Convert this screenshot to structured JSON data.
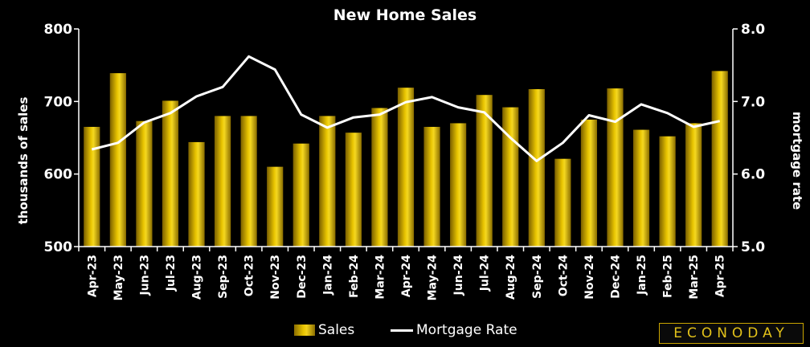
{
  "chart_data": {
    "type": "bar",
    "title": "New Home Sales",
    "categories": [
      "Apr-23",
      "May-23",
      "Jun-23",
      "Jul-23",
      "Aug-23",
      "Sep-23",
      "Oct-23",
      "Nov-23",
      "Dec-23",
      "Jan-24",
      "Feb-24",
      "Mar-24",
      "Apr-24",
      "May-24",
      "Jun-24",
      "Jul-24",
      "Aug-24",
      "Sep-24",
      "Oct-24",
      "Nov-24",
      "Dec-24",
      "Jan-25",
      "Feb-25",
      "Mar-25",
      "Apr-25"
    ],
    "series": [
      {
        "name": "Sales",
        "type": "bar",
        "axis": "left",
        "color": "#e3c21a",
        "values": [
          665,
          739,
          673,
          701,
          644,
          680,
          680,
          610,
          642,
          680,
          657,
          691,
          719,
          665,
          670,
          709,
          692,
          717,
          621,
          675,
          718,
          661,
          652,
          670,
          742
        ]
      },
      {
        "name": "Mortgage Rate",
        "type": "line",
        "axis": "right",
        "color": "#ffffff",
        "values": [
          6.34,
          6.43,
          6.71,
          6.84,
          7.07,
          7.2,
          7.62,
          7.44,
          6.82,
          6.64,
          6.78,
          6.82,
          6.99,
          7.06,
          6.92,
          6.85,
          6.5,
          6.18,
          6.43,
          6.81,
          6.72,
          6.96,
          6.84,
          6.65,
          6.73
        ]
      }
    ],
    "ylabel": "thousands of sales",
    "y2label": "mortgage rate",
    "ylim": [
      500,
      800
    ],
    "y2lim": [
      5.0,
      8.0
    ],
    "yticks": [
      "500",
      "600",
      "700",
      "800"
    ],
    "y2ticks": [
      "5.0",
      "6.0",
      "7.0",
      "8.0"
    ],
    "grid": false,
    "legend_position": "bottom"
  },
  "brand": "ECONODAY",
  "colors": {
    "background": "#000000",
    "bar": "#e3c21a",
    "line": "#ffffff",
    "axis": "#ffffff"
  }
}
